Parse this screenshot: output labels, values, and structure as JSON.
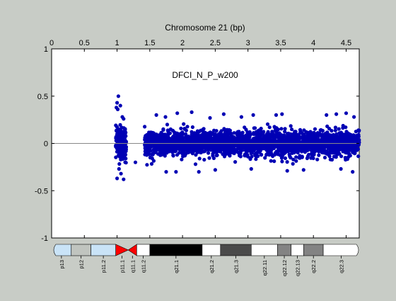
{
  "chart_data": {
    "type": "scatter",
    "title": "Chromosome 21 (bp)",
    "annotation": "DFCI_N_P_w200",
    "x_axis": {
      "position": "top",
      "range": [
        0,
        4.7
      ],
      "ticks": [
        0,
        0.5,
        1,
        1.5,
        2,
        2.5,
        3,
        3.5,
        4,
        4.5
      ],
      "tick_labels": [
        "0",
        "0.5",
        "1",
        "1.5",
        "2",
        "2.5",
        "3",
        "3.5",
        "4",
        "4.5"
      ]
    },
    "y_axis": {
      "range": [
        -1,
        1
      ],
      "ticks": [
        1,
        0.5,
        0,
        -0.5,
        -1
      ],
      "tick_labels": [
        "1",
        "0.5",
        "0",
        "-0.5",
        "-1"
      ]
    },
    "baseline": 0,
    "marker_color": "#0000b4",
    "series": [
      {
        "clusters": [
          {
            "x_range": [
              0.98,
              1.14
            ],
            "y_mean": 0.0,
            "y_sd": 0.09,
            "count": 160
          },
          {
            "x_range": [
              1.42,
              4.7
            ],
            "y_mean": 0.0,
            "y_sd": 0.065,
            "count": 2600
          }
        ],
        "outliers": [
          [
            1.02,
            0.5
          ],
          [
            1.0,
            0.43
          ],
          [
            1.05,
            0.4
          ],
          [
            0.99,
            0.38
          ],
          [
            1.01,
            0.36
          ],
          [
            1.08,
            0.28
          ],
          [
            1.1,
            0.26
          ],
          [
            1.03,
            -0.27
          ],
          [
            1.06,
            -0.32
          ],
          [
            1.0,
            -0.37
          ],
          [
            1.1,
            -0.38
          ],
          [
            1.28,
            -0.2
          ],
          [
            2.14,
            0.33
          ],
          [
            1.92,
            0.32
          ],
          [
            2.63,
            0.31
          ],
          [
            3.08,
            0.3
          ],
          [
            3.52,
            0.31
          ],
          [
            3.43,
            0.3
          ],
          [
            4.35,
            0.31
          ],
          [
            4.5,
            0.32
          ],
          [
            4.2,
            0.3
          ],
          [
            1.6,
            0.3
          ],
          [
            4.62,
            0.28
          ],
          [
            2.9,
            0.28
          ],
          [
            1.74,
            0.28
          ],
          [
            2.42,
            0.27
          ],
          [
            1.75,
            -0.3
          ],
          [
            2.5,
            -0.28
          ],
          [
            3.05,
            -0.27
          ],
          [
            3.85,
            -0.28
          ],
          [
            4.42,
            -0.27
          ],
          [
            4.6,
            -0.3
          ],
          [
            2.25,
            -0.3
          ],
          [
            1.9,
            -0.3
          ],
          [
            3.6,
            -0.29
          ]
        ]
      }
    ],
    "ideogram": {
      "bands": [
        {
          "label": "p13",
          "start": 0.0,
          "end": 0.3,
          "color": "#c9e3f7"
        },
        {
          "label": "p12",
          "start": 0.3,
          "end": 0.6,
          "color": "#c0c4bf"
        },
        {
          "label": "p11.2",
          "start": 0.6,
          "end": 0.98,
          "color": "#c9e3f7"
        },
        {
          "label": "p11.1",
          "start": 0.98,
          "end": 1.17,
          "color": "#ff0000"
        },
        {
          "label": "q11.1",
          "start": 1.17,
          "end": 1.3,
          "color": "#ff0000"
        },
        {
          "label": "q11.2",
          "start": 1.3,
          "end": 1.5,
          "color": "#ffffff"
        },
        {
          "label": "q21.1",
          "start": 1.5,
          "end": 2.3,
          "color": "#000000"
        },
        {
          "label": "q21.2",
          "start": 2.3,
          "end": 2.58,
          "color": "#ffffff"
        },
        {
          "label": "q21.3",
          "start": 2.58,
          "end": 3.05,
          "color": "#4a4a4a"
        },
        {
          "label": "q22.11",
          "start": 3.05,
          "end": 3.45,
          "color": "#ffffff"
        },
        {
          "label": "q22.12",
          "start": 3.45,
          "end": 3.66,
          "color": "#838383"
        },
        {
          "label": "q22.13",
          "start": 3.66,
          "end": 3.85,
          "color": "#ffffff"
        },
        {
          "label": "q22.2",
          "start": 3.85,
          "end": 4.15,
          "color": "#838383"
        },
        {
          "label": "q22.3",
          "start": 4.15,
          "end": 4.7,
          "color": "#ffffff"
        }
      ]
    }
  }
}
